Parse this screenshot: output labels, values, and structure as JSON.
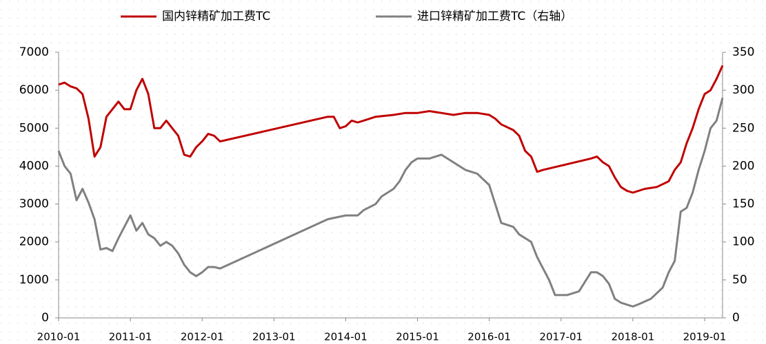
{
  "chart_data": {
    "type": "line",
    "xlim": [
      "2010-01",
      "2019-04"
    ],
    "xticks": [
      "2010-01",
      "2011-01",
      "2012-01",
      "2013-01",
      "2014-01",
      "2015-01",
      "2016-01",
      "2017-01",
      "2018-01",
      "2019-01"
    ],
    "ylim": [
      0,
      7000
    ],
    "yticks": [
      0,
      1000,
      2000,
      3000,
      4000,
      5000,
      6000,
      7000
    ],
    "y2lim": [
      0,
      350
    ],
    "y2ticks": [
      0,
      50,
      100,
      150,
      200,
      250,
      300,
      350
    ],
    "legend": "top",
    "series": [
      {
        "name": "国内锌精矿加工费TC",
        "color": "#c00000",
        "x": [
          "2010-01",
          "2010-02",
          "2010-03",
          "2010-04",
          "2010-05",
          "2010-06",
          "2010-07",
          "2010-08",
          "2010-09",
          "2010-10",
          "2010-11",
          "2010-12",
          "2011-01",
          "2011-02",
          "2011-03",
          "2011-04",
          "2011-05",
          "2011-06",
          "2011-07",
          "2011-08",
          "2011-09",
          "2011-10",
          "2011-11",
          "2011-12",
          "2012-01",
          "2012-02",
          "2012-03",
          "2012-04",
          "2013-10",
          "2013-11",
          "2013-12",
          "2014-01",
          "2014-02",
          "2014-03",
          "2014-04",
          "2014-06",
          "2014-09",
          "2014-11",
          "2015-01",
          "2015-03",
          "2015-05",
          "2015-07",
          "2015-09",
          "2015-11",
          "2016-01",
          "2016-02",
          "2016-03",
          "2016-05",
          "2016-06",
          "2016-07",
          "2016-08",
          "2016-09",
          "2016-10",
          "2017-06",
          "2017-07",
          "2017-08",
          "2017-09",
          "2017-10",
          "2017-11",
          "2017-12",
          "2018-01",
          "2018-03",
          "2018-05",
          "2018-07",
          "2018-08",
          "2018-09",
          "2018-10",
          "2018-11",
          "2018-12",
          "2019-01",
          "2019-02",
          "2019-03",
          "2019-04"
        ],
        "values": [
          6150,
          6200,
          6100,
          6050,
          5900,
          5250,
          4250,
          4500,
          5300,
          5500,
          5700,
          5500,
          5500,
          6000,
          6300,
          5900,
          5000,
          5000,
          5200,
          5000,
          4800,
          4300,
          4250,
          4500,
          4650,
          4850,
          4800,
          4650,
          5300,
          5300,
          5000,
          5050,
          5200,
          5150,
          5200,
          5300,
          5350,
          5400,
          5400,
          5450,
          5400,
          5350,
          5400,
          5400,
          5350,
          5250,
          5100,
          4950,
          4800,
          4400,
          4250,
          3850,
          3900,
          4200,
          4250,
          4100,
          4000,
          3700,
          3450,
          3350,
          3300,
          3400,
          3450,
          3600,
          3900,
          4100,
          4600,
          5000,
          5500,
          5900,
          6000,
          6300,
          6650
        ]
      },
      {
        "name": "进口锌精矿加工费TC（右轴）",
        "color": "#808080",
        "axis": "y2",
        "x": [
          "2010-01",
          "2010-02",
          "2010-03",
          "2010-04",
          "2010-05",
          "2010-06",
          "2010-07",
          "2010-08",
          "2010-09",
          "2010-10",
          "2010-11",
          "2010-12",
          "2011-01",
          "2011-02",
          "2011-03",
          "2011-04",
          "2011-05",
          "2011-06",
          "2011-07",
          "2011-08",
          "2011-09",
          "2011-10",
          "2011-11",
          "2011-12",
          "2012-01",
          "2012-02",
          "2012-03",
          "2012-04",
          "2013-10",
          "2014-01",
          "2014-03",
          "2014-04",
          "2014-06",
          "2014-07",
          "2014-09",
          "2014-10",
          "2014-11",
          "2014-12",
          "2015-01",
          "2015-03",
          "2015-05",
          "2015-07",
          "2015-09",
          "2015-11",
          "2016-01",
          "2016-02",
          "2016-03",
          "2016-05",
          "2016-06",
          "2016-07",
          "2016-08",
          "2016-09",
          "2016-11",
          "2016-12",
          "2017-02",
          "2017-04",
          "2017-06",
          "2017-07",
          "2017-08",
          "2017-09",
          "2017-10",
          "2017-11",
          "2018-01",
          "2018-02",
          "2018-04",
          "2018-06",
          "2018-07",
          "2018-08",
          "2018-09",
          "2018-10",
          "2018-11",
          "2018-12",
          "2019-01",
          "2019-02",
          "2019-03",
          "2019-04"
        ],
        "values": [
          220,
          200,
          190,
          155,
          170,
          152,
          130,
          90,
          92,
          88,
          105,
          120,
          135,
          115,
          125,
          110,
          105,
          95,
          100,
          95,
          85,
          70,
          60,
          55,
          60,
          67,
          67,
          65,
          130,
          135,
          135,
          142,
          150,
          160,
          170,
          180,
          195,
          205,
          210,
          210,
          215,
          205,
          195,
          190,
          175,
          150,
          125,
          120,
          110,
          105,
          100,
          80,
          50,
          30,
          30,
          35,
          60,
          60,
          55,
          45,
          25,
          20,
          15,
          18,
          25,
          40,
          60,
          75,
          140,
          145,
          165,
          195,
          220,
          250,
          260,
          290
        ]
      }
    ]
  }
}
